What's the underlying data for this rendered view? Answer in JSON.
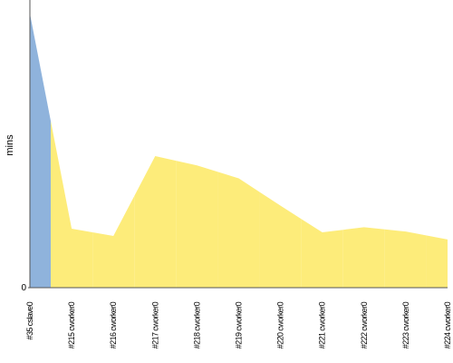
{
  "chart_data": {
    "type": "area",
    "y_label": "mins",
    "categories": [
      "#35 cslave0",
      "#215 cworker0",
      "#216 cworker0",
      "#217 cworker0",
      "#218 cworker0",
      "#219 cworker0",
      "#220 cworker0",
      "#221 cworker0",
      "#222 cworker0",
      "#223 cworker0",
      "#224 cworker0"
    ],
    "values": [
      19.05,
      4.1,
      3.6,
      9.15,
      8.5,
      7.6,
      5.7,
      3.85,
      4.2,
      3.9,
      3.35
    ],
    "colors": [
      "#8fb3dc",
      "#fdec7a",
      "#fdec7a",
      "#fdec7a",
      "#fdec7a",
      "#fdec7a",
      "#fdec7a",
      "#fdec7a",
      "#fdec7a",
      "#fdec7a",
      "#fdec7a"
    ],
    "ylim": [
      0,
      20
    ],
    "yticks": [
      0
    ]
  }
}
